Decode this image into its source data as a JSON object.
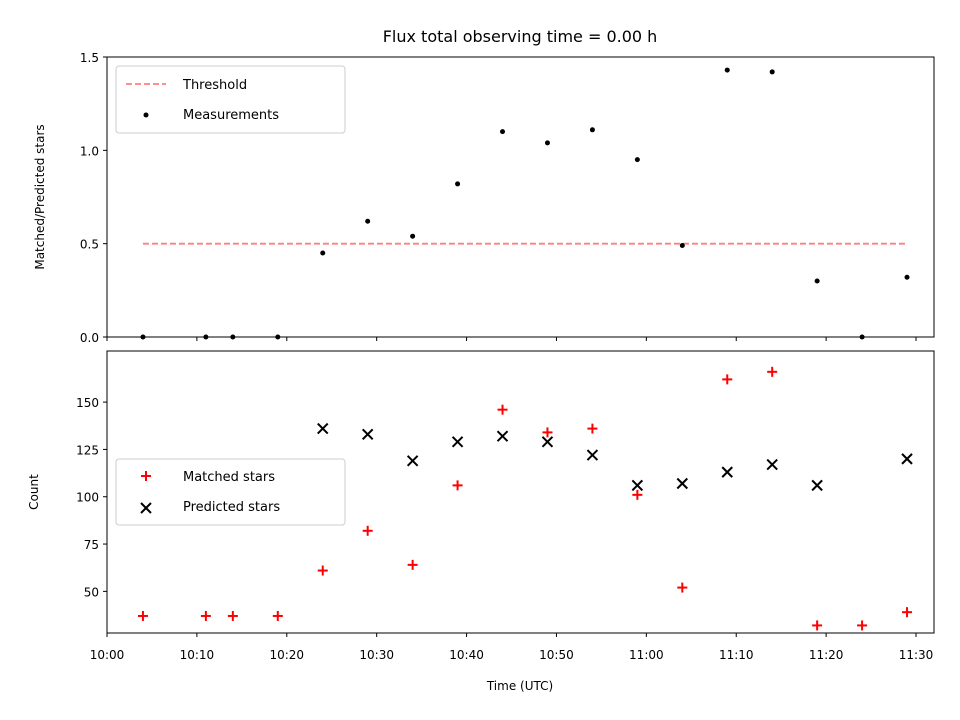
{
  "chart_data": [
    {
      "type": "scatter",
      "title": "Flux total observing time = 0.00 h",
      "xlabel": "",
      "ylabel": "Matched/Predicted stars",
      "ylim": [
        0,
        1.5
      ],
      "yticks": [
        "0.0",
        "0.5",
        "1.0",
        "1.5"
      ],
      "xlim": [
        "10:00",
        "11:32"
      ],
      "legend_position": "top-left",
      "threshold": {
        "name": "Threshold",
        "value": 0.5,
        "x_start": "10:04",
        "x_end": "11:29",
        "color": "#ff7f7f",
        "style": "dashed"
      },
      "series": [
        {
          "name": "Measurements",
          "marker": "dot",
          "color": "#000000",
          "x": [
            "10:04",
            "10:11",
            "10:14",
            "10:19",
            "10:24",
            "10:29",
            "10:34",
            "10:39",
            "10:44",
            "10:49",
            "10:54",
            "10:59",
            "11:04",
            "11:09",
            "11:14",
            "11:19",
            "11:24",
            "11:29"
          ],
          "y": [
            0.0,
            0.0,
            0.0,
            0.0,
            0.45,
            0.62,
            0.54,
            0.82,
            1.1,
            1.04,
            1.11,
            0.95,
            0.49,
            1.43,
            1.42,
            0.3,
            0.0,
            0.32
          ]
        }
      ]
    },
    {
      "type": "scatter",
      "title": "",
      "xlabel": "Time (UTC)",
      "ylabel": "Count",
      "ylim": [
        28,
        177
      ],
      "yticks": [
        "50",
        "75",
        "100",
        "125",
        "150"
      ],
      "xlim": [
        "10:00",
        "11:32"
      ],
      "xticks": [
        "10:00",
        "10:10",
        "10:20",
        "10:30",
        "10:40",
        "10:50",
        "11:00",
        "11:10",
        "11:20",
        "11:30"
      ],
      "legend_position": "center-left",
      "series": [
        {
          "name": "Matched stars",
          "marker": "plus",
          "color": "#ff0000",
          "x": [
            "10:04",
            "10:11",
            "10:14",
            "10:19",
            "10:24",
            "10:29",
            "10:34",
            "10:39",
            "10:44",
            "10:49",
            "10:54",
            "10:59",
            "11:04",
            "11:09",
            "11:14",
            "11:19",
            "11:24",
            "11:29"
          ],
          "y": [
            37,
            37,
            37,
            37,
            61,
            82,
            64,
            106,
            146,
            134,
            136,
            101,
            52,
            162,
            166,
            32,
            32,
            39
          ]
        },
        {
          "name": "Predicted stars",
          "marker": "x",
          "color": "#000000",
          "x": [
            "10:24",
            "10:29",
            "10:34",
            "10:39",
            "10:44",
            "10:49",
            "10:54",
            "10:59",
            "11:04",
            "11:09",
            "11:14",
            "11:19",
            "11:29"
          ],
          "y": [
            136,
            133,
            119,
            129,
            132,
            129,
            122,
            106,
            107,
            113,
            117,
            106,
            120
          ]
        }
      ]
    }
  ]
}
